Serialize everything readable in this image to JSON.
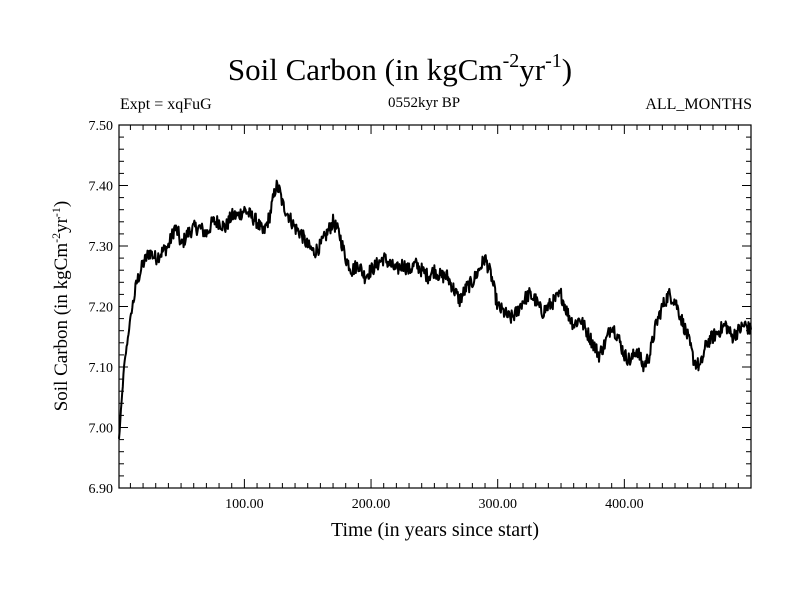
{
  "chart_data": {
    "type": "line",
    "title": "Soil Carbon (in kgCm",
    "title_units": {
      "exp1": "-2",
      "mid": "yr",
      "exp2": "-1",
      "close": ")"
    },
    "experiment": "Expt = xqFuG",
    "period": "0552kyr BP",
    "months": "ALL_MONTHS",
    "xlabel": "Time (in years since start)",
    "ylabel": "Soil Carbon (in kgCm",
    "ylabel_units": {
      "exp1": "-2",
      "mid": "yr",
      "exp2": "-1",
      "close": ")"
    },
    "xlim": [
      1,
      500
    ],
    "ylim": [
      6.9,
      7.5
    ],
    "x_ticks": [
      100,
      200,
      300,
      400
    ],
    "x_tick_labels": [
      "100.00",
      "200.00",
      "300.00",
      "400.00"
    ],
    "y_ticks": [
      6.9,
      7.0,
      7.1,
      7.2,
      7.3,
      7.4,
      7.5
    ],
    "y_tick_labels": [
      "6.90",
      "7.00",
      "7.10",
      "7.20",
      "7.30",
      "7.40",
      "7.50"
    ],
    "line_color": "#000000",
    "series": [
      {
        "name": "Soil Carbon",
        "x": [
          1,
          5,
          10,
          15,
          20,
          25,
          30,
          35,
          40,
          45,
          48,
          50,
          55,
          60,
          65,
          70,
          75,
          80,
          85,
          90,
          95,
          100,
          105,
          110,
          115,
          120,
          122,
          125,
          128,
          130,
          135,
          140,
          145,
          150,
          155,
          160,
          165,
          170,
          175,
          180,
          185,
          190,
          195,
          200,
          205,
          210,
          215,
          220,
          225,
          230,
          235,
          240,
          245,
          250,
          255,
          260,
          265,
          270,
          275,
          280,
          285,
          290,
          295,
          300,
          305,
          310,
          315,
          320,
          325,
          330,
          335,
          340,
          345,
          350,
          355,
          360,
          365,
          370,
          375,
          380,
          385,
          390,
          395,
          400,
          405,
          410,
          415,
          420,
          425,
          430,
          435,
          440,
          445,
          450,
          455,
          460,
          465,
          470,
          475,
          480,
          485,
          490,
          495,
          500
        ],
        "values": [
          6.98,
          7.1,
          7.18,
          7.24,
          7.27,
          7.29,
          7.28,
          7.29,
          7.3,
          7.33,
          7.32,
          7.3,
          7.32,
          7.33,
          7.33,
          7.32,
          7.34,
          7.34,
          7.33,
          7.35,
          7.35,
          7.36,
          7.35,
          7.34,
          7.32,
          7.35,
          7.37,
          7.4,
          7.39,
          7.37,
          7.35,
          7.33,
          7.32,
          7.3,
          7.29,
          7.3,
          7.32,
          7.34,
          7.32,
          7.28,
          7.26,
          7.27,
          7.25,
          7.26,
          7.27,
          7.28,
          7.27,
          7.26,
          7.27,
          7.26,
          7.27,
          7.26,
          7.25,
          7.26,
          7.25,
          7.25,
          7.23,
          7.21,
          7.23,
          7.24,
          7.26,
          7.28,
          7.25,
          7.2,
          7.19,
          7.18,
          7.19,
          7.21,
          7.22,
          7.21,
          7.19,
          7.2,
          7.21,
          7.22,
          7.19,
          7.17,
          7.18,
          7.16,
          7.14,
          7.12,
          7.14,
          7.17,
          7.15,
          7.12,
          7.11,
          7.13,
          7.1,
          7.12,
          7.17,
          7.2,
          7.22,
          7.21,
          7.18,
          7.15,
          7.11,
          7.1,
          7.14,
          7.15,
          7.16,
          7.17,
          7.15,
          7.16,
          7.17,
          7.16
        ]
      }
    ]
  }
}
